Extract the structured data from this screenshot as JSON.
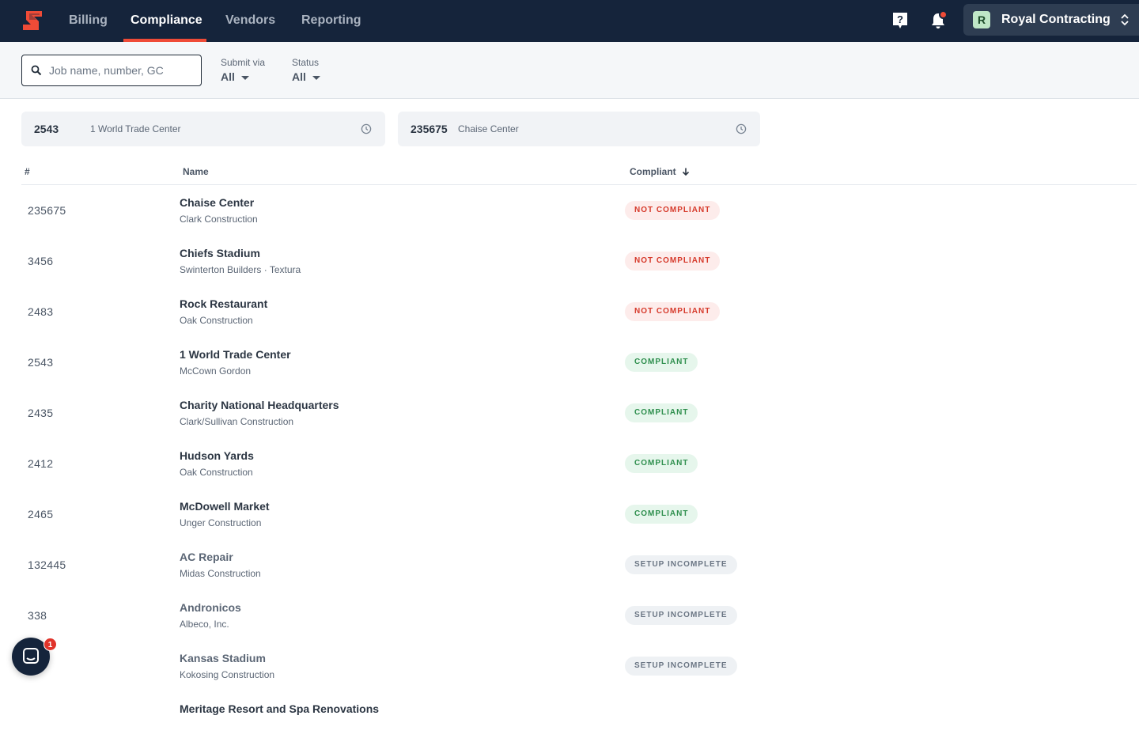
{
  "nav": {
    "items": [
      {
        "label": "Billing",
        "active": false
      },
      {
        "label": "Compliance",
        "active": true
      },
      {
        "label": "Vendors",
        "active": false
      },
      {
        "label": "Reporting",
        "active": false
      }
    ],
    "icons": [
      "help-icon",
      "bell-icon"
    ],
    "company": {
      "initial": "R",
      "name": "Royal Contracting"
    },
    "colors": {
      "bar": "#15243b",
      "accent": "#ef4b37"
    }
  },
  "filters": {
    "search_placeholder": "Job name, number, GC",
    "search_value": "",
    "submit_via": {
      "label": "Submit via",
      "value": "All"
    },
    "status": {
      "label": "Status",
      "value": "All"
    }
  },
  "recent": [
    {
      "number": "2543",
      "name": "1 World Trade Center"
    },
    {
      "number": "235675",
      "name": "Chaise Center"
    }
  ],
  "table": {
    "headers": {
      "num": "#",
      "name": "Name",
      "compliant": "Compliant"
    },
    "rows": [
      {
        "num": "235675",
        "name": "Chaise Center",
        "sub": "Clark Construction",
        "status": "NOT COMPLIANT"
      },
      {
        "num": "3456",
        "name": "Chiefs Stadium",
        "sub": "Swinterton Builders · Textura",
        "status": "NOT COMPLIANT"
      },
      {
        "num": "2483",
        "name": "Rock Restaurant",
        "sub": "Oak Construction",
        "status": "NOT COMPLIANT"
      },
      {
        "num": "2543",
        "name": "1 World Trade Center",
        "sub": "McCown Gordon",
        "status": "COMPLIANT"
      },
      {
        "num": "2435",
        "name": "Charity National Headquarters",
        "sub": "Clark/Sullivan Construction",
        "status": "COMPLIANT"
      },
      {
        "num": "2412",
        "name": "Hudson Yards",
        "sub": "Oak Construction",
        "status": "COMPLIANT"
      },
      {
        "num": "2465",
        "name": "McDowell Market",
        "sub": "Unger Construction",
        "status": "COMPLIANT"
      },
      {
        "num": "132445",
        "name": "AC Repair",
        "sub": "Midas Construction",
        "status": "SETUP INCOMPLETE"
      },
      {
        "num": "338",
        "name": "Andronicos",
        "sub": "Albeco, Inc.",
        "status": "SETUP INCOMPLETE"
      },
      {
        "num": "",
        "name": "Kansas Stadium",
        "sub": "Kokosing Construction",
        "status": "SETUP INCOMPLETE"
      },
      {
        "num": "",
        "name": "Meritage Resort and Spa Renovations",
        "sub": "",
        "status": ""
      }
    ]
  },
  "chat": {
    "unread": "1"
  }
}
